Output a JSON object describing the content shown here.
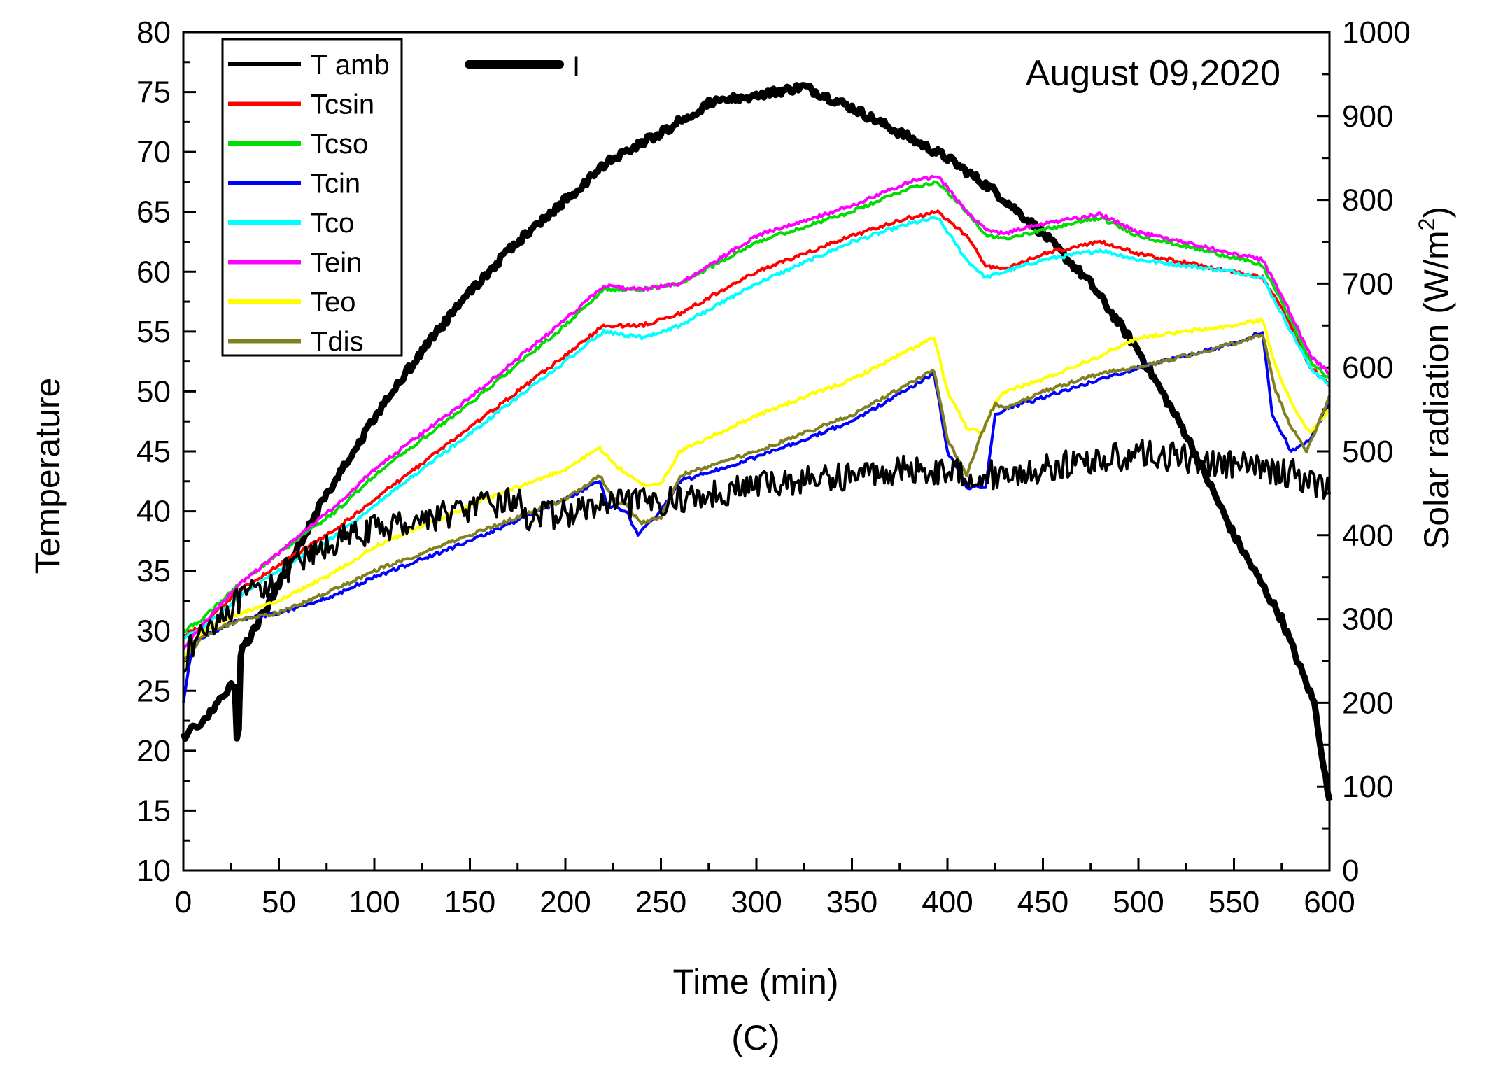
{
  "chart_data": {
    "type": "line",
    "annotation": "August 09,2020",
    "caption": "(C)",
    "xlabel": "Time (min)",
    "ylabel_left": "Temperature",
    "ylabel_right": "Solar radiation  (W/m",
    "ylabel_right_sup": "2",
    "ylabel_right_close": ")",
    "xlim": [
      0,
      600
    ],
    "ylim_left": [
      10,
      80
    ],
    "ylim_right": [
      0,
      1000
    ],
    "x_ticks": [
      "0",
      "50",
      "100",
      "150",
      "200",
      "250",
      "300",
      "350",
      "400",
      "450",
      "500",
      "550",
      "600"
    ],
    "y_left_ticks": [
      "10",
      "15",
      "20",
      "25",
      "30",
      "35",
      "40",
      "45",
      "50",
      "55",
      "60",
      "65",
      "70",
      "75",
      "80"
    ],
    "y_right_ticks": [
      "0",
      "100",
      "200",
      "300",
      "400",
      "500",
      "600",
      "700",
      "800",
      "900",
      "1000"
    ],
    "grid": false,
    "legend_position": "top-left",
    "series": [
      {
        "name": "T amb",
        "color": "#000000",
        "axis": "left",
        "noise": 1.2,
        "x": [
          0,
          10,
          20,
          30,
          40,
          50,
          60,
          80,
          100,
          120,
          150,
          175,
          180,
          200,
          220,
          240,
          260,
          280,
          300,
          320,
          350,
          380,
          400,
          420,
          440,
          460,
          480,
          500,
          520,
          540,
          560,
          580,
          600
        ],
        "y": [
          27.5,
          30,
          31.5,
          32.5,
          33.5,
          34.5,
          35.5,
          37.5,
          38.5,
          39.2,
          40.2,
          41,
          39.5,
          39.8,
          40.5,
          40.7,
          41,
          41.5,
          42.2,
          42.5,
          43,
          43.5,
          43.3,
          43,
          43.2,
          43.8,
          44.3,
          44.8,
          44.5,
          44,
          43.6,
          43.2,
          41.8
        ]
      },
      {
        "name": "Tcsin",
        "color": "#ff0000",
        "axis": "left",
        "noise": 0.15,
        "x": [
          0,
          10,
          30,
          50,
          80,
          100,
          150,
          200,
          220,
          240,
          260,
          300,
          350,
          380,
          395,
          410,
          420,
          430,
          450,
          480,
          500,
          550,
          565,
          575,
          590,
          600
        ],
        "y": [
          29.5,
          30.5,
          33.5,
          35.5,
          38.5,
          41,
          47,
          53,
          55.5,
          55.5,
          56.5,
          60,
          63,
          64.5,
          65,
          63,
          60.5,
          60.2,
          61.5,
          62.5,
          61.5,
          60,
          59.5,
          57,
          52,
          50.5
        ]
      },
      {
        "name": "Tcso",
        "color": "#00dd00",
        "axis": "left",
        "noise": 0.15,
        "x": [
          0,
          10,
          30,
          50,
          80,
          100,
          150,
          200,
          220,
          240,
          260,
          300,
          350,
          380,
          395,
          410,
          420,
          430,
          450,
          480,
          500,
          550,
          565,
          575,
          590,
          600
        ],
        "y": [
          30,
          31,
          34,
          36.5,
          40,
          43,
          49,
          55.5,
          58.5,
          58.5,
          59,
          62.5,
          65,
          67,
          67.5,
          65,
          63,
          62.8,
          63.5,
          64.5,
          63,
          61.2,
          60.5,
          57.5,
          52.5,
          51
        ]
      },
      {
        "name": "Tcin",
        "color": "#0000ff",
        "axis": "left",
        "noise": 0.15,
        "x": [
          0,
          5,
          10,
          30,
          50,
          80,
          100,
          150,
          200,
          218,
          222,
          232,
          238,
          250,
          260,
          300,
          350,
          393,
          400,
          410,
          420,
          425,
          430,
          450,
          480,
          500,
          550,
          565,
          570,
          580,
          590,
          600
        ],
        "y": [
          24,
          29,
          29.5,
          31,
          31.5,
          33,
          34.5,
          37.5,
          41,
          42.5,
          40.5,
          40,
          38,
          40,
          42.5,
          44.5,
          47.5,
          51.5,
          45,
          42,
          42,
          48,
          48.5,
          49.5,
          51,
          52,
          54,
          55,
          48,
          45,
          46,
          49
        ]
      },
      {
        "name": "Tco",
        "color": "#00ffff",
        "axis": "left",
        "noise": 0.15,
        "x": [
          0,
          10,
          30,
          50,
          80,
          100,
          150,
          200,
          220,
          240,
          260,
          300,
          350,
          380,
          395,
          410,
          420,
          430,
          450,
          480,
          500,
          550,
          565,
          575,
          590,
          600
        ],
        "y": [
          29.5,
          30.2,
          33,
          35,
          38,
          40.5,
          46.5,
          52.5,
          55,
          54.5,
          55.5,
          59,
          62.5,
          64,
          64.5,
          61,
          59.5,
          60,
          61,
          61.8,
          61,
          60,
          59.5,
          56.5,
          52,
          50.5
        ]
      },
      {
        "name": "Tein",
        "color": "#ff00ff",
        "axis": "left",
        "noise": 0.15,
        "x": [
          0,
          10,
          30,
          50,
          80,
          100,
          150,
          200,
          220,
          240,
          260,
          300,
          350,
          380,
          395,
          410,
          420,
          430,
          450,
          480,
          500,
          550,
          565,
          575,
          590,
          600
        ],
        "y": [
          28.5,
          30.5,
          34,
          36.5,
          40.5,
          43.5,
          49.5,
          56,
          58.8,
          58.5,
          59,
          63,
          65.5,
          67.5,
          68,
          65,
          63.5,
          63.2,
          64,
          64.8,
          63.3,
          61.5,
          61,
          58,
          53,
          51.5
        ]
      },
      {
        "name": "Teo",
        "color": "#ffff00",
        "axis": "left",
        "noise": 0.15,
        "x": [
          0,
          5,
          10,
          30,
          50,
          80,
          100,
          150,
          200,
          218,
          225,
          240,
          250,
          260,
          300,
          350,
          393,
          400,
          410,
          418,
          425,
          430,
          450,
          480,
          500,
          550,
          565,
          570,
          580,
          590,
          600
        ],
        "y": [
          27.5,
          29,
          30,
          31.5,
          32.5,
          35,
          37,
          40.5,
          43.5,
          45.3,
          44,
          42.2,
          42.3,
          45,
          48,
          51,
          54.5,
          50,
          47,
          46.5,
          49,
          50,
          51,
          53,
          54.5,
          55.5,
          56,
          53,
          49,
          46.5,
          48.5
        ]
      },
      {
        "name": "Tdis",
        "color": "#808020",
        "axis": "left",
        "noise": 0.15,
        "x": [
          0,
          5,
          10,
          30,
          50,
          80,
          100,
          150,
          200,
          218,
          225,
          232,
          240,
          250,
          260,
          300,
          350,
          393,
          400,
          410,
          418,
          425,
          430,
          450,
          480,
          500,
          550,
          565,
          572,
          580,
          588,
          600
        ],
        "y": [
          27.5,
          28.5,
          29.5,
          31,
          31.5,
          33.5,
          35,
          38,
          41,
          43,
          41,
          40.5,
          39,
          39.5,
          43,
          45,
          48,
          51.8,
          46,
          43,
          46.5,
          49,
          48.5,
          50,
          51.5,
          52,
          54,
          54.8,
          50,
          47,
          45,
          49.5
        ]
      },
      {
        "name": "I",
        "color": "#000000",
        "axis": "right",
        "noise": 5,
        "thick": true,
        "x": [
          0,
          10,
          20,
          25,
          27,
          28,
          29,
          30,
          50,
          75,
          100,
          125,
          150,
          175,
          200,
          225,
          250,
          275,
          300,
          325,
          350,
          375,
          400,
          425,
          450,
          475,
          500,
          525,
          550,
          575,
          585,
          592,
          596,
          600
        ],
        "y": [
          160,
          180,
          205,
          225,
          220,
          160,
          170,
          260,
          340,
          450,
          540,
          620,
          690,
          750,
          800,
          850,
          880,
          915,
          925,
          935,
          910,
          880,
          850,
          810,
          760,
          700,
          620,
          520,
          400,
          300,
          240,
          200,
          140,
          80
        ]
      }
    ]
  }
}
